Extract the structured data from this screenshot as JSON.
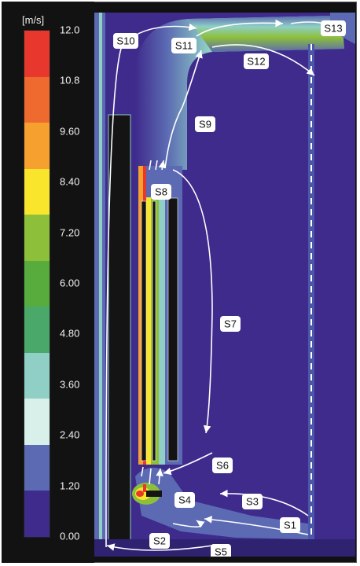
{
  "legend": {
    "unit": "[m/s]",
    "ticks": [
      "12.0",
      "10.8",
      "9.60",
      "8.40",
      "7.20",
      "6.00",
      "4.80",
      "3.60",
      "2.40",
      "1.20",
      "0.00"
    ],
    "colors": [
      "#e8382d",
      "#ef6a2e",
      "#f5a02f",
      "#f8e52c",
      "#8dbf3a",
      "#57ac3d",
      "#4aa86a",
      "#8fcfc5",
      "#d9efe9",
      "#5b6ab2",
      "#3f2b8c"
    ]
  },
  "colors": {
    "background_flow": "#3f2b8c",
    "solid_block": "#141414",
    "arrow": "#ffffff"
  },
  "steps": [
    "S1",
    "S2",
    "S3",
    "S4",
    "S5",
    "S6",
    "S7",
    "S8",
    "S9",
    "S10",
    "S11",
    "S12",
    "S13"
  ]
}
